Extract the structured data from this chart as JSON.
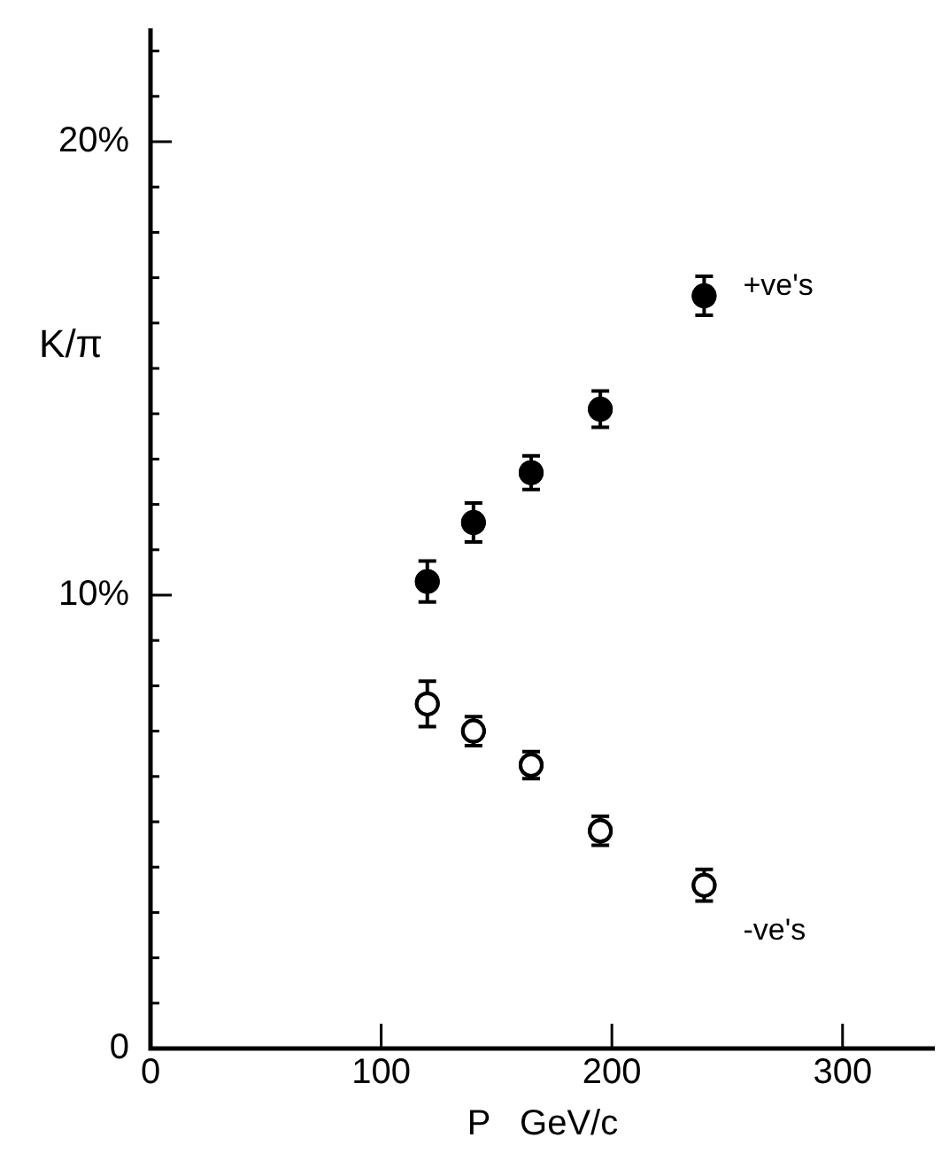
{
  "chart_data": {
    "type": "scatter",
    "xlabel": "P   GeV/c",
    "ylabel": "K/π",
    "xlim": [
      0,
      340
    ],
    "xticks": [
      0,
      100,
      200,
      300
    ],
    "ylim": [
      0,
      22.5
    ],
    "yticks": [
      {
        "value": 0,
        "label": "0"
      },
      {
        "value": 1,
        "label": null
      },
      {
        "value": 2,
        "label": null
      },
      {
        "value": 3,
        "label": null
      },
      {
        "value": 4,
        "label": null
      },
      {
        "value": 5,
        "label": null
      },
      {
        "value": 6,
        "label": null
      },
      {
        "value": 7,
        "label": null
      },
      {
        "value": 8,
        "label": null
      },
      {
        "value": 9,
        "label": null
      },
      {
        "value": 10,
        "label": "10%"
      },
      {
        "value": 11,
        "label": null
      },
      {
        "value": 12,
        "label": null
      },
      {
        "value": 13,
        "label": null
      },
      {
        "value": 14,
        "label": null
      },
      {
        "value": 15,
        "label": null
      },
      {
        "value": 16,
        "label": null
      },
      {
        "value": 17,
        "label": null
      },
      {
        "value": 18,
        "label": null
      },
      {
        "value": 19,
        "label": null
      },
      {
        "value": 20,
        "label": "20%"
      },
      {
        "value": 21,
        "label": null
      },
      {
        "value": 22,
        "label": null
      }
    ],
    "grid": false,
    "legend": false,
    "marker": "circle",
    "x": [
      120,
      140,
      165,
      195,
      240
    ],
    "series": [
      {
        "name": "+ve's",
        "color": "#000000",
        "values": [
          10.3,
          11.6,
          12.7,
          14.1,
          16.6
        ],
        "errors": [
          0.45,
          0.43,
          0.37,
          0.4,
          0.43
        ]
      },
      {
        "name": "-ve's",
        "color": "#000000",
        "values": [
          7.6,
          7.0,
          6.25,
          4.8,
          3.6
        ],
        "errors": [
          0.5,
          0.32,
          0.3,
          0.32,
          0.35
        ]
      }
    ]
  }
}
